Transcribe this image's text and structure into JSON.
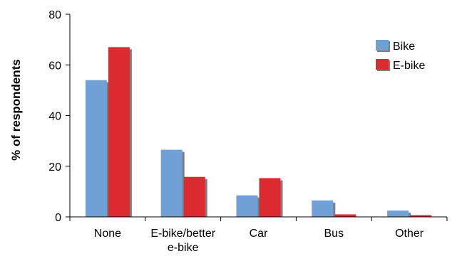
{
  "chart_data": {
    "type": "bar",
    "categories": [
      "None",
      "E-bike/better e-bike",
      "Car",
      "Bus",
      "Other"
    ],
    "series": [
      {
        "name": "Bike",
        "values": [
          54,
          26.5,
          8.5,
          6.5,
          2.5
        ],
        "color": "#6fa0d6"
      },
      {
        "name": "E-bike",
        "values": [
          67,
          15.8,
          15.3,
          1,
          0.7
        ],
        "color": "#dc2b30"
      }
    ],
    "title": "",
    "xlabel": "",
    "ylabel": "% of respondents",
    "ylim": [
      0,
      80
    ],
    "yticks": [
      0,
      20,
      40,
      60,
      80
    ],
    "grid": false,
    "legend": "top-right",
    "shadow_color": "#7f7f7f"
  }
}
